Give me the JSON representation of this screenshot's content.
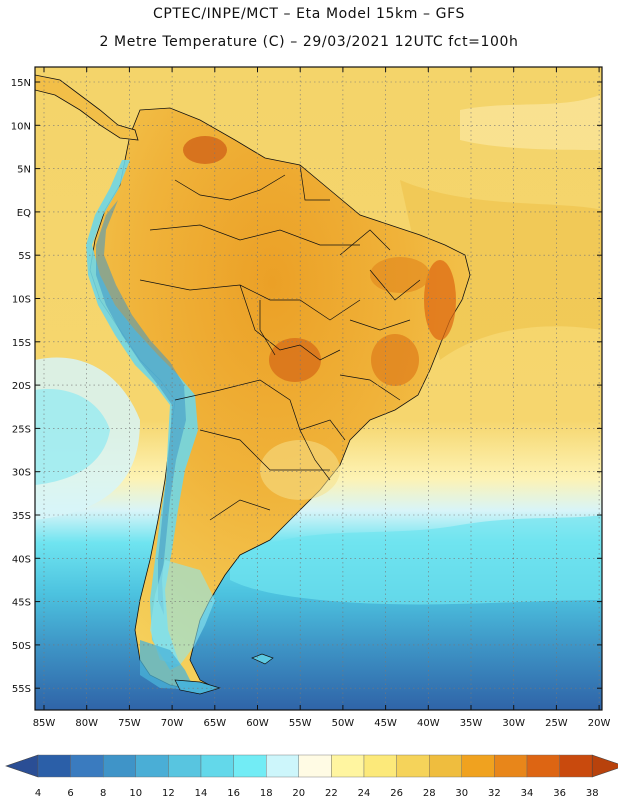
{
  "header": {
    "line1": "CPTEC/INPE/MCT –  Eta Model 15km – GFS",
    "line2": "2 Metre Temperature (C) – 29/03/2021 12UTC fct=100h"
  },
  "map": {
    "lat_labels": [
      "15N",
      "10N",
      "5N",
      "EQ",
      "5S",
      "10S",
      "15S",
      "20S",
      "25S",
      "30S",
      "35S",
      "40S",
      "45S",
      "50S",
      "55S"
    ],
    "lon_labels": [
      "85W",
      "80W",
      "75W",
      "70W",
      "65W",
      "60W",
      "55W",
      "50W",
      "45W",
      "40W",
      "35W",
      "30W",
      "25W",
      "20W"
    ]
  },
  "colorbar": {
    "ticks": [
      "4",
      "6",
      "8",
      "10",
      "12",
      "14",
      "16",
      "18",
      "20",
      "22",
      "24",
      "26",
      "28",
      "30",
      "32",
      "34",
      "36",
      "38"
    ],
    "colors": [
      "#2b5fa8",
      "#3a7bbf",
      "#3f94c8",
      "#4aaed6",
      "#58c5e0",
      "#63d8ea",
      "#72ecf5",
      "#cdf6fb",
      "#fffbe4",
      "#fff5a0",
      "#fce97a",
      "#f5d35a",
      "#efbd3e",
      "#f0a21f",
      "#e8861a",
      "#dd6513",
      "#c94a0d"
    ],
    "below_color": "#2a4e95",
    "above_color": "#b8420c"
  }
}
